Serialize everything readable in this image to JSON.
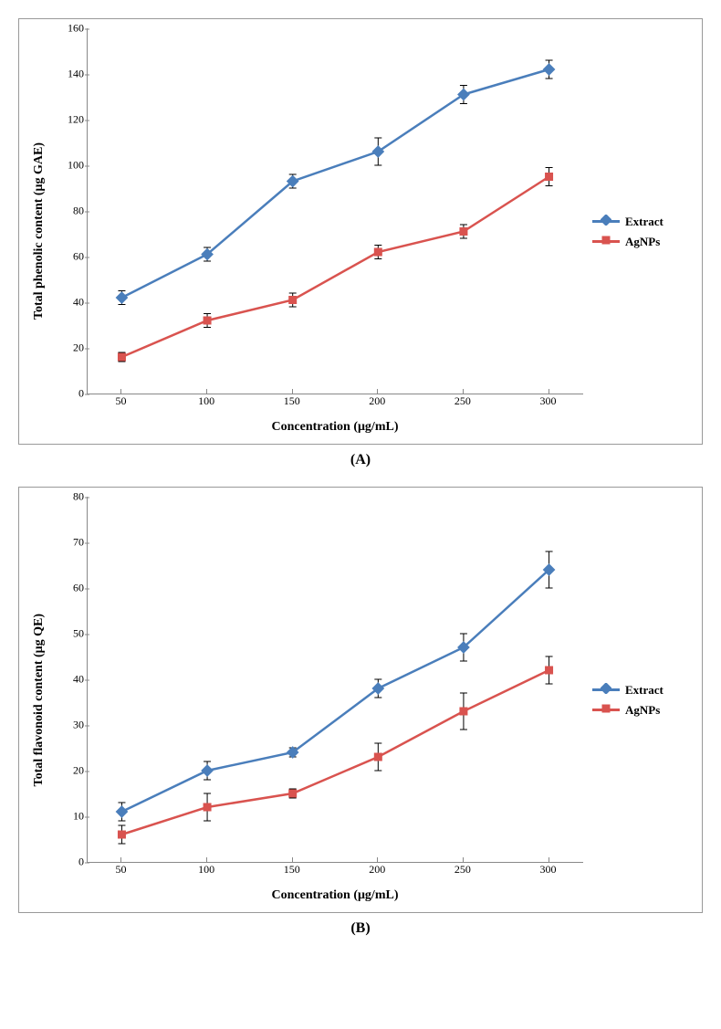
{
  "panels": [
    {
      "label": "(A)",
      "type": "line",
      "ylabel": "Total phenolic content (μg GAE)",
      "xlabel": "Concentration (μg/mL)",
      "ylim": [
        0,
        160
      ],
      "ytick_step": 20,
      "x_values": [
        50,
        100,
        150,
        200,
        250,
        300
      ],
      "x_range": [
        30,
        320
      ],
      "series": [
        {
          "name": "Extract",
          "color": "#4a7ebb",
          "marker": "diamond",
          "marker_size": 8,
          "line_width": 2.5,
          "values": [
            42,
            61,
            93,
            106,
            131,
            142
          ],
          "err": [
            3,
            3,
            3,
            6,
            4,
            4
          ]
        },
        {
          "name": "AgNPs",
          "color": "#d9534f",
          "marker": "square",
          "marker_size": 8,
          "line_width": 2.5,
          "values": [
            16,
            32,
            41,
            62,
            71,
            95
          ],
          "err": [
            2,
            3,
            3,
            3,
            3,
            4
          ]
        }
      ],
      "background_color": "#ffffff",
      "axis_color": "#888888",
      "tick_fontsize": 12,
      "label_fontsize": 14
    },
    {
      "label": "(B)",
      "type": "line",
      "ylabel": "Total flavonoid content (μg QE)",
      "xlabel": "Concentration (μg/mL)",
      "ylim": [
        0,
        80
      ],
      "ytick_step": 10,
      "x_values": [
        50,
        100,
        150,
        200,
        250,
        300
      ],
      "x_range": [
        30,
        320
      ],
      "series": [
        {
          "name": "Extract",
          "color": "#4a7ebb",
          "marker": "diamond",
          "marker_size": 8,
          "line_width": 2.5,
          "values": [
            11,
            20,
            24,
            38,
            47,
            64
          ],
          "err": [
            2,
            2,
            1,
            2,
            3,
            4
          ]
        },
        {
          "name": "AgNPs",
          "color": "#d9534f",
          "marker": "square",
          "marker_size": 8,
          "line_width": 2.5,
          "values": [
            6,
            12,
            15,
            23,
            33,
            42
          ],
          "err": [
            2,
            3,
            1,
            3,
            4,
            3
          ]
        }
      ],
      "background_color": "#ffffff",
      "axis_color": "#888888",
      "tick_fontsize": 12,
      "label_fontsize": 14
    }
  ]
}
